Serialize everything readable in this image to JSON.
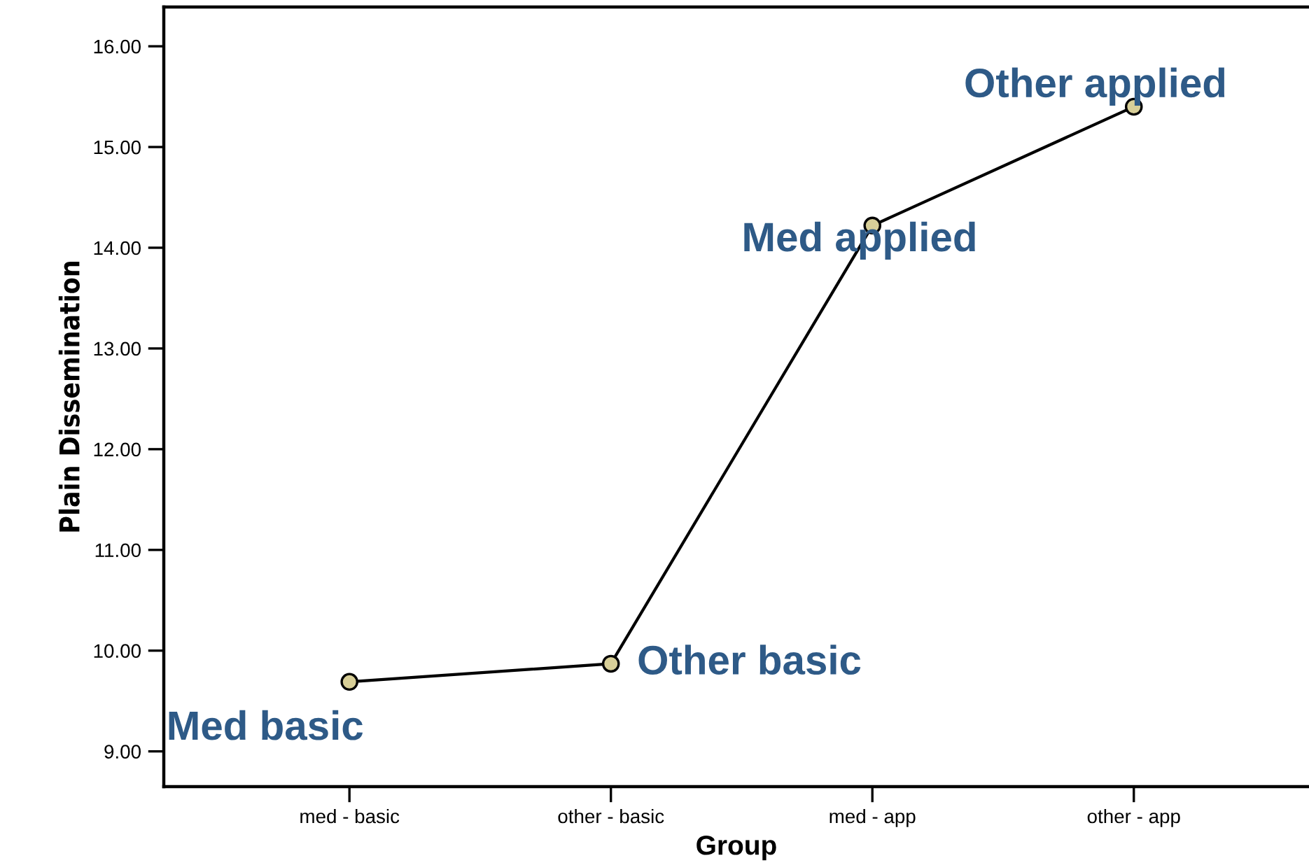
{
  "chart_data": {
    "type": "line",
    "xlabel": "Group",
    "ylabel": "Plain Dissemination",
    "categories": [
      "med - basic",
      "other - basic",
      "med - app",
      "other - app"
    ],
    "series": [
      {
        "color": "#000000",
        "values": [
          9.69,
          9.87,
          14.22,
          15.4
        ]
      }
    ],
    "marker": "circle",
    "line_style": "solid",
    "grid": false,
    "legend": false,
    "ylim": [
      8.65,
      16.39
    ],
    "yticks": [
      {
        "value": 9,
        "label": "9.00"
      },
      {
        "value": 10,
        "label": "10.00"
      },
      {
        "value": 11,
        "label": "11.00"
      },
      {
        "value": 12,
        "label": "12.00"
      },
      {
        "value": 13,
        "label": "13.00"
      },
      {
        "value": 14,
        "label": "14.00"
      },
      {
        "value": 15,
        "label": "15.00"
      },
      {
        "value": 16,
        "label": "16.00"
      }
    ],
    "annotations": [
      {
        "text": "Med basic",
        "x": "med - basic",
        "y": 9.69
      },
      {
        "text": "Other basic",
        "x": "other - basic",
        "y": 9.87
      },
      {
        "text": "Med applied",
        "x": "med - app",
        "y": 14.22
      },
      {
        "text": "Other applied",
        "x": "other - app",
        "y": 15.4
      }
    ]
  }
}
